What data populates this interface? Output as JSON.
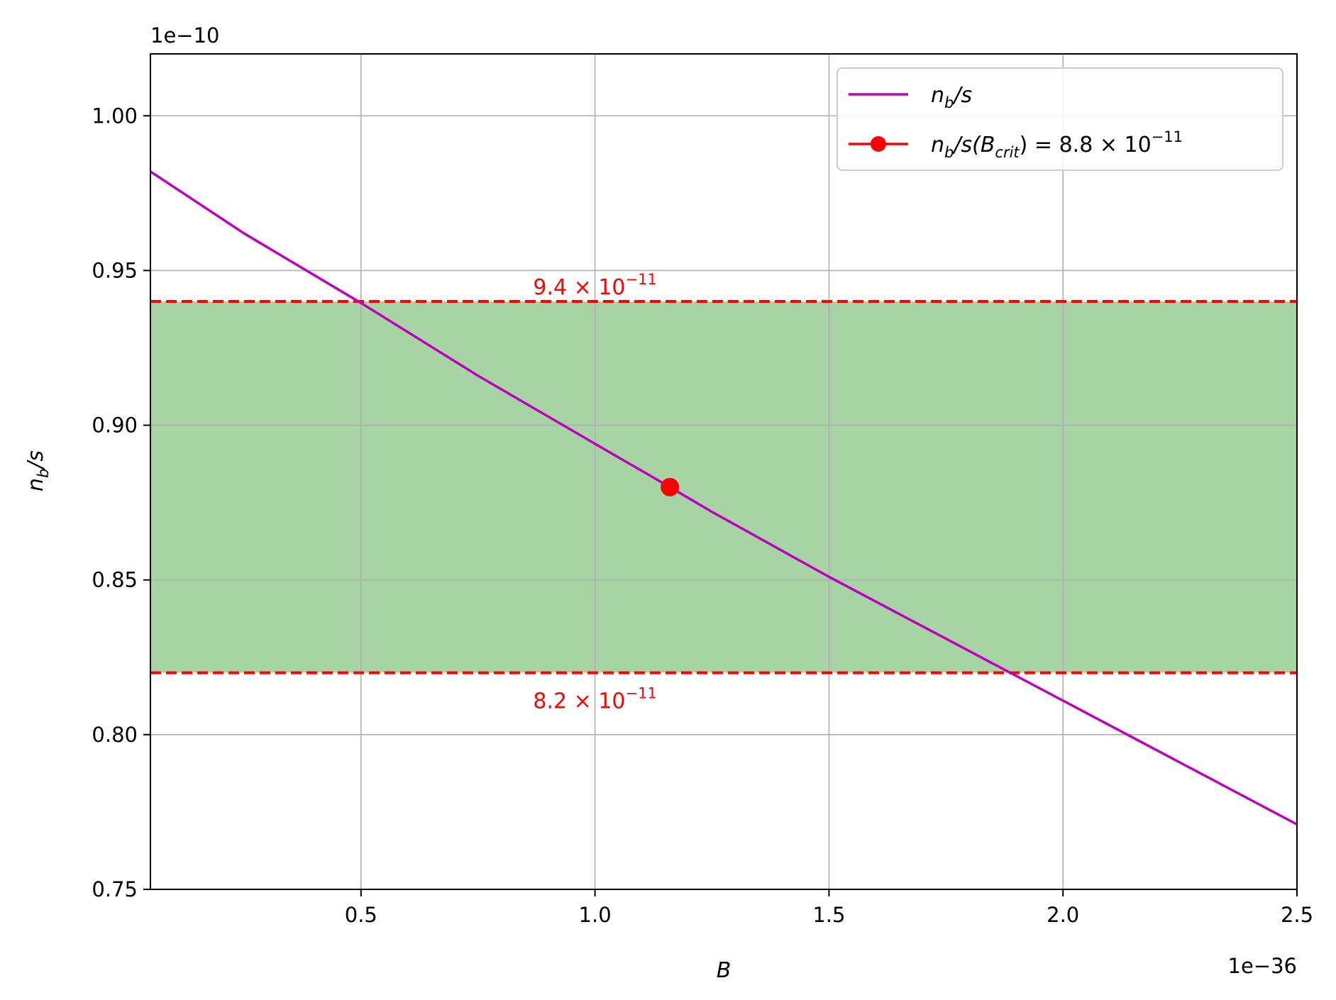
{
  "chart_data": {
    "type": "line",
    "xlabel": "B",
    "ylabel": "n_b/s",
    "x_offset_text": "1e−36",
    "y_offset_text": "1e−10",
    "xlim": [
      0.05,
      2.5
    ],
    "ylim": [
      0.75,
      1.02
    ],
    "x_ticks": [
      0.5,
      1.0,
      1.5,
      2.0,
      2.5
    ],
    "x_tick_labels": [
      "0.5",
      "1.0",
      "1.5",
      "2.0",
      "2.5"
    ],
    "y_ticks": [
      0.75,
      0.8,
      0.85,
      0.9,
      0.95,
      1.0
    ],
    "y_tick_labels": [
      "0.75",
      "0.80",
      "0.85",
      "0.90",
      "0.95",
      "1.00"
    ],
    "grid": true,
    "legend_position": "top-right",
    "series": [
      {
        "name": "n_b/s",
        "color": "#bf00bf",
        "x": [
          0.05,
          0.25,
          0.5,
          0.75,
          1.0,
          1.16,
          1.25,
          1.5,
          1.75,
          2.0,
          2.25,
          2.5
        ],
        "y": [
          0.982,
          0.962,
          0.9395,
          0.916,
          0.894,
          0.88,
          0.872,
          0.851,
          0.831,
          0.811,
          0.791,
          0.771
        ]
      }
    ],
    "critical_point": {
      "name": "n_b/s(B_crit) = 8.8 × 10^−11",
      "x": 1.16,
      "y": 0.88,
      "color": "#ff0000"
    },
    "band": {
      "lower": 0.82,
      "upper": 0.94,
      "fill": "#a7d3a5",
      "line_color": "#ff0000",
      "upper_label_base": "9.4 × 10",
      "upper_label_exp": "−11",
      "lower_label_base": "8.2 × 10",
      "lower_label_exp": "−11"
    },
    "legend": {
      "line_label_n": "n",
      "line_label_sub": "b",
      "line_label_rest": "/s",
      "point_label_n": "n",
      "point_label_sub": "b",
      "point_label_s": "/s(",
      "point_label_B": "B",
      "point_label_crit": "crit",
      "point_label_eq": ") = 8.8 × 10",
      "point_label_exp": "−11"
    }
  }
}
